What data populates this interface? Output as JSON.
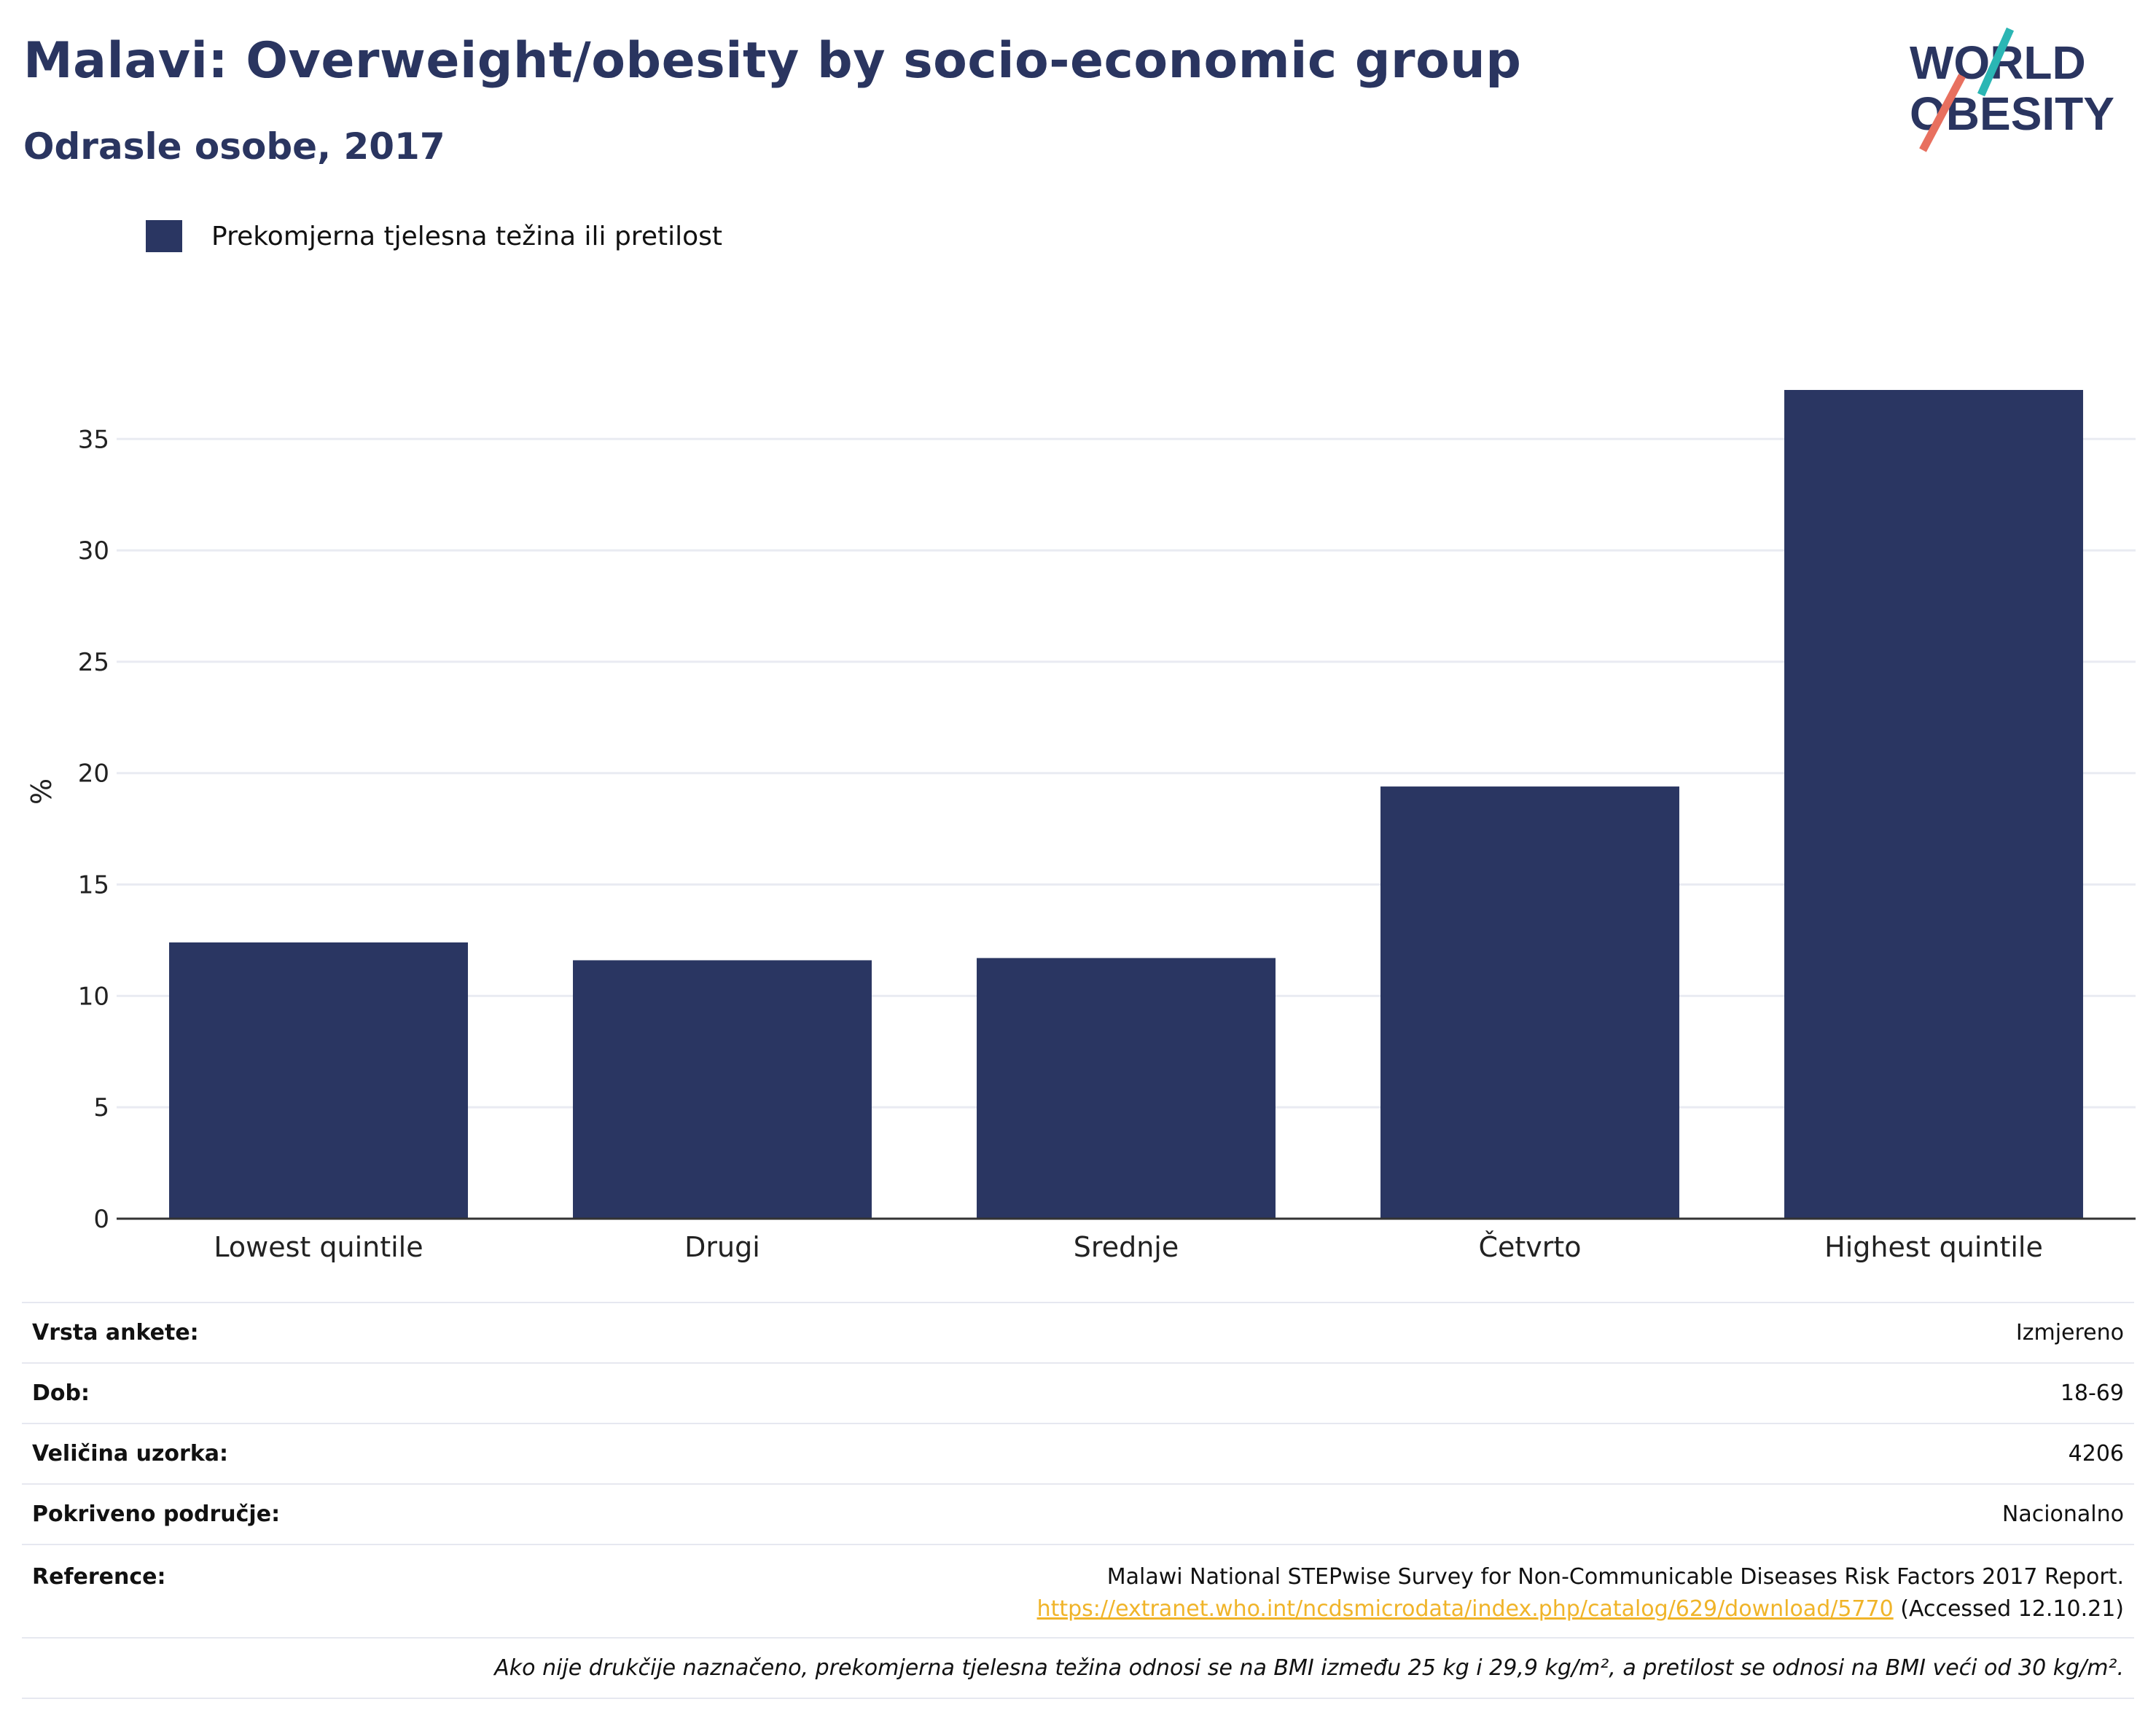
{
  "header": {
    "title": "Malavi: Overweight/obesity by socio-economic group",
    "subtitle": "Odrasle osobe, 2017",
    "logo_line1": "WORLD",
    "logo_line2": "OBESITY"
  },
  "colors": {
    "bar": "#2a3662",
    "title": "#2a3560",
    "logo_teal": "#2bb6b4",
    "logo_red": "#e8705f",
    "link": "#f0b429"
  },
  "chart_data": {
    "type": "bar",
    "categories": [
      "Lowest quintile",
      "Drugi",
      "Srednje",
      "Četvrto",
      "Highest quintile"
    ],
    "series": [
      {
        "name": "Prekomjerna tjelesna težina ili pretilost",
        "values": [
          12.4,
          11.6,
          11.7,
          19.4,
          37.2
        ]
      }
    ],
    "ylabel": "%",
    "ylim": [
      0,
      39
    ],
    "yticks": [
      0,
      5,
      10,
      15,
      20,
      25,
      30,
      35
    ],
    "grid": true,
    "legend_position": "top-left"
  },
  "info": {
    "rows": [
      {
        "label": "Vrsta ankete:",
        "value": "Izmjereno"
      },
      {
        "label": "Dob:",
        "value": "18-69"
      },
      {
        "label": "Veličina uzorka:",
        "value": "4206"
      },
      {
        "label": "Pokriveno područje:",
        "value": "Nacionalno"
      }
    ],
    "reference_label": "Reference:",
    "reference_text": "Malawi National STEPwise Survey for Non-Communicable Diseases Risk Factors 2017 Report.",
    "reference_url": "https://extranet.who.int/ncdsmicrodata/index.php/catalog/629/download/5770",
    "reference_accessed": "(Accessed 12.10.21)",
    "footnote": "Ako nije drukčije naznačeno, prekomjerna tjelesna težina odnosi se na BMI između 25 kg i 29,9 kg/m², a pretilost se odnosi na BMI veći od 30 kg/m²."
  }
}
